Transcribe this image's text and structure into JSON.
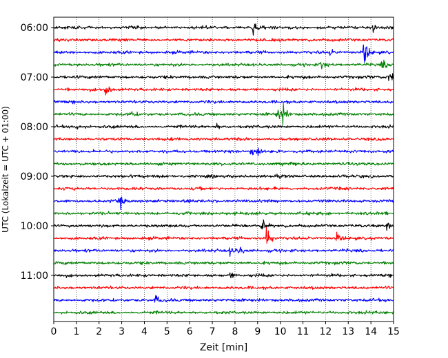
{
  "chart_data": {
    "type": "line",
    "title": "",
    "xlabel": "Zeit  [min]",
    "ylabel": "UTC (Lokalzeit = UTC + 01:00)",
    "xlim": [
      0,
      15
    ],
    "x_ticks": [
      0,
      1,
      2,
      3,
      4,
      5,
      6,
      7,
      8,
      9,
      10,
      11,
      12,
      13,
      14,
      15
    ],
    "x_tick_labels": [
      "0",
      "1",
      "2",
      "3",
      "4",
      "5",
      "6",
      "7",
      "8",
      "9",
      "10",
      "11",
      "12",
      "13",
      "14",
      "15"
    ],
    "y_tick_labels": [
      "06:00",
      "07:00",
      "08:00",
      "09:00",
      "10:00",
      "11:00"
    ],
    "y_tick_traces": [
      0,
      4,
      8,
      12,
      16,
      20
    ],
    "traces_per_hour": 4,
    "minutes_per_trace": 15,
    "grid": "vertical dotted",
    "color_cycle": [
      "#000000",
      "#ff0000",
      "#0000ff",
      "#008000"
    ],
    "series": [
      {
        "start": "06:00",
        "color": "#000000",
        "events": [
          {
            "minute": 8.8,
            "amp": 0.9
          },
          {
            "minute": 14.1,
            "amp": 0.55
          }
        ]
      },
      {
        "start": "06:15",
        "color": "#ff0000",
        "events": []
      },
      {
        "start": "06:30",
        "color": "#0000ff",
        "events": [
          {
            "minute": 13.7,
            "amp": 1.6
          },
          {
            "minute": 12.2,
            "amp": 0.35
          }
        ]
      },
      {
        "start": "06:45",
        "color": "#008000",
        "events": [
          {
            "minute": 11.8,
            "amp": 0.7
          },
          {
            "minute": 14.5,
            "amp": 0.6
          }
        ]
      },
      {
        "start": "07:00",
        "color": "#000000",
        "events": [
          {
            "minute": 14.8,
            "amp": 0.95
          }
        ]
      },
      {
        "start": "07:15",
        "color": "#ff0000",
        "events": [
          {
            "minute": 2.3,
            "amp": 0.9
          }
        ]
      },
      {
        "start": "07:30",
        "color": "#0000ff",
        "events": []
      },
      {
        "start": "07:45",
        "color": "#008000",
        "events": [
          {
            "minute": 9.9,
            "amp": 0.9
          },
          {
            "minute": 10.1,
            "amp": 0.95
          },
          {
            "minute": 3.4,
            "amp": 0.4
          }
        ]
      },
      {
        "start": "08:00",
        "color": "#000000",
        "events": [
          {
            "minute": 1.0,
            "amp": 0.35
          },
          {
            "minute": 7.2,
            "amp": 0.3
          }
        ]
      },
      {
        "start": "08:15",
        "color": "#ff0000",
        "events": []
      },
      {
        "start": "08:30",
        "color": "#0000ff",
        "events": [
          {
            "minute": 8.7,
            "amp": 1.0
          },
          {
            "minute": 9.0,
            "amp": 0.6
          }
        ]
      },
      {
        "start": "08:45",
        "color": "#008000",
        "events": [
          {
            "minute": 10.5,
            "amp": 0.3
          }
        ]
      },
      {
        "start": "09:00",
        "color": "#000000",
        "events": []
      },
      {
        "start": "09:15",
        "color": "#ff0000",
        "events": []
      },
      {
        "start": "09:30",
        "color": "#0000ff",
        "events": [
          {
            "minute": 2.9,
            "amp": 0.8
          }
        ]
      },
      {
        "start": "09:45",
        "color": "#008000",
        "events": [
          {
            "minute": 14.2,
            "amp": 0.35
          }
        ]
      },
      {
        "start": "10:00",
        "color": "#000000",
        "events": [
          {
            "minute": 9.2,
            "amp": 1.0
          },
          {
            "minute": 14.7,
            "amp": 0.45
          }
        ]
      },
      {
        "start": "10:15",
        "color": "#ff0000",
        "events": [
          {
            "minute": 9.4,
            "amp": 1.35
          },
          {
            "minute": 12.5,
            "amp": 0.5
          }
        ]
      },
      {
        "start": "10:30",
        "color": "#0000ff",
        "events": [
          {
            "minute": 7.8,
            "amp": 0.6
          },
          {
            "minute": 8.2,
            "amp": 0.5
          }
        ]
      },
      {
        "start": "10:45",
        "color": "#008000",
        "events": []
      },
      {
        "start": "11:00",
        "color": "#000000",
        "events": [
          {
            "minute": 7.8,
            "amp": 0.3
          }
        ]
      },
      {
        "start": "11:15",
        "color": "#ff0000",
        "events": []
      },
      {
        "start": "11:30",
        "color": "#0000ff",
        "events": [
          {
            "minute": 4.5,
            "amp": 0.5
          }
        ]
      },
      {
        "start": "11:45",
        "color": "#008000",
        "events": []
      }
    ]
  }
}
